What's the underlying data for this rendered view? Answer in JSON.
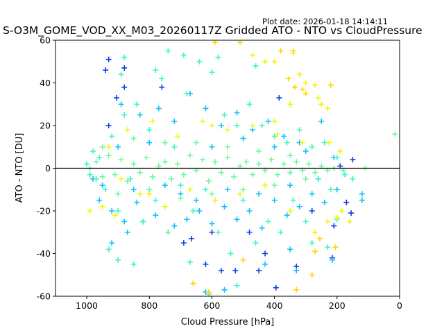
{
  "plot_date": "Plot date: 2026-01-18 14:14:11",
  "chart_data": {
    "type": "scatter",
    "title": "S-O3M_GOME_VOD_XX_M03_20260117Z Gridded ATO - NTO vs CloudPressure",
    "xlabel": "Cloud Pressure [hPa]",
    "ylabel": "ATO - NTO [DU]",
    "xlim": [
      1100,
      0
    ],
    "ylim": [
      -60,
      60
    ],
    "x_reversed": true,
    "xticks": [
      1000,
      800,
      600,
      400,
      200,
      0
    ],
    "yticks": [
      -60,
      -40,
      -20,
      0,
      20,
      40,
      60
    ],
    "reference_line_y": 0,
    "marker": "plus",
    "colors": [
      "#0c3de8",
      "#0bbfff",
      "#3cf6c6",
      "#f4f40c",
      "#ffd400",
      "#6cf99b"
    ],
    "grid": false,
    "series": [
      {
        "color": "#0c3de8",
        "points": [
          [
            930,
            51
          ],
          [
            880,
            47
          ],
          [
            760,
            38
          ],
          [
            940,
            46
          ],
          [
            620,
            -45
          ],
          [
            570,
            -48
          ],
          [
            430,
            -40
          ],
          [
            395,
            -56
          ],
          [
            330,
            -46
          ],
          [
            215,
            -42
          ],
          [
            170,
            -16
          ],
          [
            155,
            -21
          ],
          [
            150,
            4
          ],
          [
            190,
            1
          ],
          [
            880,
            38
          ],
          [
            905,
            33
          ],
          [
            690,
            -35
          ],
          [
            665,
            -33
          ],
          [
            525,
            -48
          ],
          [
            480,
            -30
          ],
          [
            280,
            -20
          ],
          [
            210,
            -27
          ],
          [
            385,
            33
          ],
          [
            930,
            20
          ],
          [
            820,
            -25
          ],
          [
            600,
            -30
          ],
          [
            450,
            -48
          ]
        ]
      },
      {
        "color": "#0bbfff",
        "points": [
          [
            960,
            -15
          ],
          [
            920,
            -20
          ],
          [
            880,
            -25
          ],
          [
            840,
            -16
          ],
          [
            780,
            -22
          ],
          [
            720,
            -27
          ],
          [
            680,
            -24
          ],
          [
            640,
            -20
          ],
          [
            600,
            -26
          ],
          [
            560,
            -18
          ],
          [
            520,
            -24
          ],
          [
            480,
            -20
          ],
          [
            440,
            -28
          ],
          [
            400,
            -15
          ],
          [
            360,
            -22
          ],
          [
            320,
            -18
          ],
          [
            280,
            -12
          ],
          [
            240,
            -16
          ],
          [
            200,
            -10
          ],
          [
            890,
            30
          ],
          [
            830,
            25
          ],
          [
            770,
            28
          ],
          [
            720,
            22
          ],
          [
            670,
            35
          ],
          [
            620,
            28
          ],
          [
            570,
            20
          ],
          [
            520,
            26
          ],
          [
            470,
            18
          ],
          [
            420,
            22
          ],
          [
            370,
            15
          ],
          [
            320,
            12
          ],
          [
            250,
            22
          ],
          [
            120,
            -12
          ],
          [
            120,
            -15
          ],
          [
            430,
            -45
          ],
          [
            350,
            -38
          ],
          [
            330,
            -48
          ],
          [
            215,
            -43
          ],
          [
            560,
            -57
          ],
          [
            620,
            -58
          ],
          [
            920,
            -35
          ],
          [
            870,
            -30
          ],
          [
            980,
            -5
          ],
          [
            950,
            -8
          ],
          [
            900,
            10
          ],
          [
            850,
            -10
          ],
          [
            800,
            12
          ],
          [
            750,
            -8
          ],
          [
            700,
            -12
          ],
          [
            650,
            -15
          ],
          [
            600,
            10
          ],
          [
            550,
            -10
          ],
          [
            500,
            14
          ],
          [
            450,
            -12
          ],
          [
            400,
            10
          ],
          [
            350,
            -8
          ],
          [
            300,
            8
          ],
          [
            260,
            -5
          ],
          [
            210,
            5
          ]
        ]
      },
      {
        "color": "#3cf6c6",
        "points": [
          [
            960,
            5
          ],
          [
            940,
            -10
          ],
          [
            920,
            15
          ],
          [
            900,
            -20
          ],
          [
            880,
            25
          ],
          [
            860,
            -5
          ],
          [
            840,
            30
          ],
          [
            820,
            -25
          ],
          [
            800,
            18
          ],
          [
            780,
            -15
          ],
          [
            760,
            42
          ],
          [
            740,
            -30
          ],
          [
            720,
            10
          ],
          [
            700,
            -8
          ],
          [
            680,
            35
          ],
          [
            660,
            -20
          ],
          [
            640,
            50
          ],
          [
            620,
            -10
          ],
          [
            600,
            45
          ],
          [
            580,
            -30
          ],
          [
            560,
            25
          ],
          [
            540,
            -40
          ],
          [
            520,
            20
          ],
          [
            500,
            -15
          ],
          [
            480,
            30
          ],
          [
            460,
            -35
          ],
          [
            440,
            20
          ],
          [
            420,
            -25
          ],
          [
            400,
            15
          ],
          [
            380,
            -30
          ],
          [
            360,
            12
          ],
          [
            340,
            -15
          ],
          [
            320,
            18
          ],
          [
            300,
            -25
          ],
          [
            280,
            10
          ],
          [
            260,
            -5
          ],
          [
            240,
            12
          ],
          [
            220,
            -10
          ],
          [
            200,
            5
          ],
          [
            740,
            55
          ],
          [
            580,
            52
          ],
          [
            460,
            48
          ],
          [
            880,
            52
          ],
          [
            1000,
            2
          ],
          [
            990,
            -3
          ],
          [
            980,
            8
          ],
          [
            970,
            -5
          ],
          [
            610,
            -59
          ],
          [
            280,
            -35
          ],
          [
            230,
            -37
          ],
          [
            520,
            -55
          ],
          [
            670,
            -44
          ],
          [
            850,
            -45
          ],
          [
            930,
            -38
          ],
          [
            900,
            -43
          ],
          [
            150,
            -5
          ],
          [
            175,
            -3
          ],
          [
            200,
            -24
          ],
          [
            890,
            44
          ],
          [
            780,
            46
          ],
          [
            690,
            53
          ]
        ]
      },
      {
        "color": "#f4f40c",
        "points": [
          [
            950,
            -18
          ],
          [
            910,
            -22
          ],
          [
            870,
            18
          ],
          [
            830,
            -12
          ],
          [
            790,
            22
          ],
          [
            750,
            -18
          ],
          [
            710,
            15
          ],
          [
            670,
            -10
          ],
          [
            630,
            22
          ],
          [
            590,
            -15
          ],
          [
            550,
            18
          ],
          [
            510,
            -12
          ],
          [
            470,
            20
          ],
          [
            430,
            -8
          ],
          [
            390,
            16
          ],
          [
            350,
            -20
          ],
          [
            310,
            12
          ],
          [
            270,
            -30
          ],
          [
            230,
            -25
          ],
          [
            190,
            8
          ],
          [
            470,
            53
          ],
          [
            430,
            50
          ],
          [
            400,
            50
          ],
          [
            340,
            54
          ],
          [
            320,
            44
          ],
          [
            300,
            40
          ],
          [
            270,
            39
          ],
          [
            260,
            33
          ],
          [
            230,
            28
          ],
          [
            200,
            -23
          ],
          [
            185,
            -20
          ],
          [
            160,
            -25
          ],
          [
            930,
            10
          ],
          [
            890,
            -5
          ],
          [
            990,
            -20
          ],
          [
            800,
            -12
          ],
          [
            600,
            20
          ],
          [
            400,
            22
          ],
          [
            350,
            30
          ],
          [
            250,
            30
          ],
          [
            225,
            12
          ]
        ]
      },
      {
        "color": "#ffd400",
        "points": [
          [
            590,
            59
          ],
          [
            510,
            59
          ],
          [
            380,
            55
          ],
          [
            340,
            55
          ],
          [
            220,
            39
          ],
          [
            330,
            -57
          ],
          [
            280,
            -50
          ],
          [
            270,
            -39
          ],
          [
            335,
            38
          ],
          [
            310,
            37
          ],
          [
            300,
            35
          ],
          [
            255,
            -33
          ],
          [
            610,
            -58
          ],
          [
            660,
            -54
          ],
          [
            500,
            -43
          ],
          [
            205,
            -37
          ],
          [
            355,
            42
          ]
        ]
      },
      {
        "color": "#6cf99b",
        "points": [
          [
            990,
            0
          ],
          [
            970,
            3
          ],
          [
            950,
            -4
          ],
          [
            930,
            6
          ],
          [
            910,
            -3
          ],
          [
            890,
            4
          ],
          [
            870,
            -6
          ],
          [
            850,
            2
          ],
          [
            830,
            -2
          ],
          [
            810,
            5
          ],
          [
            790,
            -4
          ],
          [
            770,
            1
          ],
          [
            750,
            3
          ],
          [
            730,
            -5
          ],
          [
            710,
            2
          ],
          [
            690,
            -3
          ],
          [
            670,
            6
          ],
          [
            650,
            -1
          ],
          [
            630,
            4
          ],
          [
            610,
            -6
          ],
          [
            590,
            3
          ],
          [
            570,
            -2
          ],
          [
            550,
            5
          ],
          [
            530,
            -4
          ],
          [
            510,
            1
          ],
          [
            490,
            3
          ],
          [
            470,
            -3
          ],
          [
            450,
            2
          ],
          [
            430,
            -1
          ],
          [
            410,
            4
          ],
          [
            390,
            -3
          ],
          [
            370,
            2
          ],
          [
            350,
            -2
          ],
          [
            330,
            3
          ],
          [
            310,
            -1
          ],
          [
            290,
            2
          ],
          [
            270,
            -2
          ],
          [
            250,
            1
          ],
          [
            230,
            -1
          ],
          [
            210,
            0
          ],
          [
            180,
            -1
          ],
          [
            15,
            16
          ],
          [
            110,
            0
          ],
          [
            950,
            10
          ],
          [
            900,
            -12
          ],
          [
            850,
            14
          ],
          [
            800,
            -10
          ],
          [
            750,
            12
          ],
          [
            700,
            -14
          ],
          [
            650,
            12
          ],
          [
            600,
            -12
          ],
          [
            550,
            10
          ],
          [
            500,
            -10
          ],
          [
            450,
            8
          ],
          [
            400,
            -8
          ],
          [
            350,
            6
          ],
          [
            300,
            -5
          ]
        ]
      }
    ]
  }
}
